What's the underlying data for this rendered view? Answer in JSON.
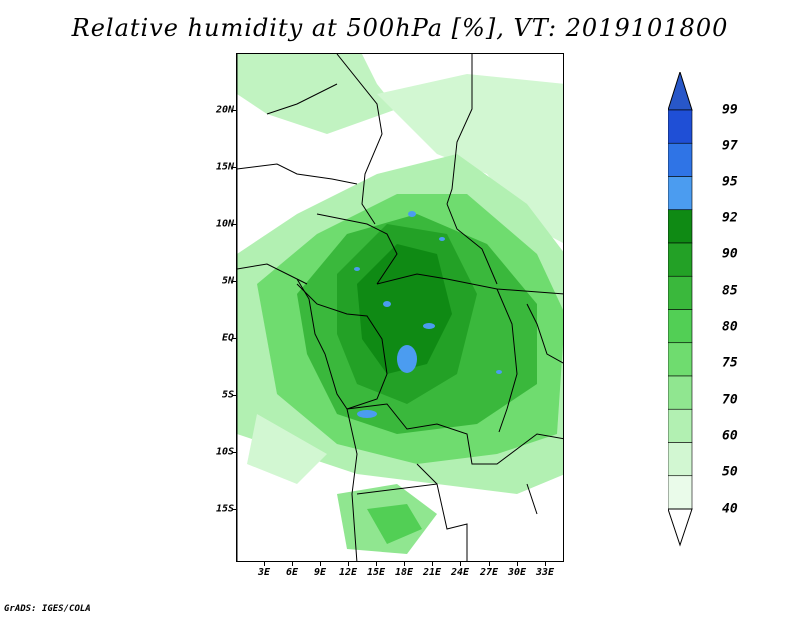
{
  "title": "Relative humidity at 500hPa [%], VT: 2019101800",
  "credit": "GrADS: IGES/COLA",
  "map": {
    "latitude_labels": [
      "20N",
      "15N",
      "10N",
      "5N",
      "EQ",
      "5S",
      "10S",
      "15S"
    ],
    "longitude_labels": [
      "3E",
      "6E",
      "9E",
      "12E",
      "15E",
      "18E",
      "21E",
      "24E",
      "27E",
      "30E",
      "33E"
    ]
  },
  "colorbar": {
    "levels": [
      "99",
      "97",
      "95",
      "92",
      "90",
      "85",
      "80",
      "75",
      "70",
      "60",
      "50",
      "40"
    ],
    "colors": [
      "#1f4fd6",
      "#2f74e6",
      "#4b9cf0",
      "#0f8a14",
      "#23a126",
      "#3ab83c",
      "#52cf55",
      "#6fdc6f",
      "#90e690",
      "#b2f0b2",
      "#d2f7d2",
      "#eafbea"
    ],
    "top_arrow_color": "#2857c8"
  }
}
